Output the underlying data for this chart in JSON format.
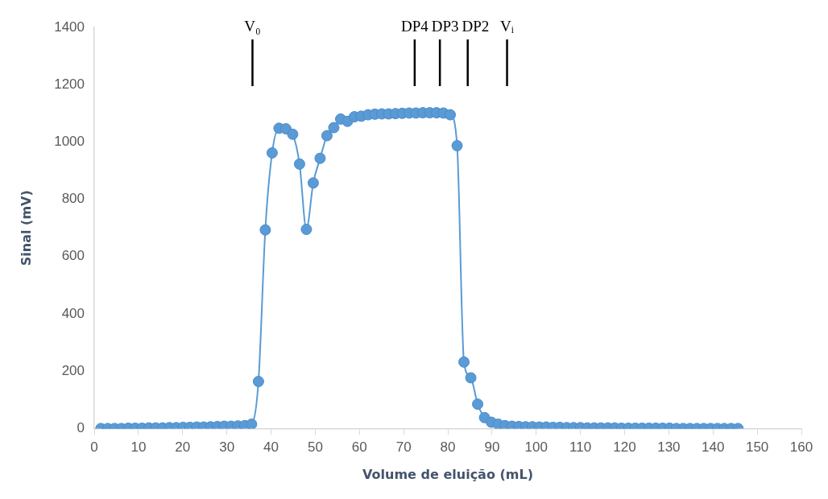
{
  "chart_data": {
    "type": "line",
    "xlabel": "Volume de eluição (mL)",
    "ylabel": "Sinal (mV)",
    "x": [
      1.5,
      3.05,
      4.6,
      6.15,
      7.7,
      9.25,
      10.8,
      12.35,
      13.9,
      15.45,
      17,
      18.55,
      20.1,
      21.65,
      23.2,
      24.75,
      26.3,
      27.85,
      29.4,
      30.95,
      32.5,
      34.05,
      35.6,
      37.15,
      38.7,
      40.25,
      41.8,
      43.35,
      44.9,
      46.45,
      48,
      49.55,
      51.1,
      52.65,
      54.2,
      55.75,
      57.3,
      58.85,
      60.4,
      61.95,
      63.5,
      65.05,
      66.6,
      68.15,
      69.7,
      71.25,
      72.8,
      74.35,
      75.9,
      77.45,
      79,
      80.55,
      82.1,
      83.65,
      85.2,
      86.75,
      88.3,
      89.85,
      91.4,
      92.95,
      94.5,
      96.05,
      97.6,
      99.15,
      100.7,
      102.25,
      103.8,
      105.35,
      106.9,
      108.45,
      110,
      111.55,
      113.1,
      114.65,
      116.2,
      117.75,
      119.3,
      120.85,
      122.4,
      123.95,
      125.5,
      127.05,
      128.6,
      130.15,
      131.7,
      133.25,
      134.8,
      136.35,
      137.9,
      139.45,
      141,
      142.55,
      144.1,
      145.65
    ],
    "series": [
      {
        "color": "#5b9bd5",
        "values": [
          0,
          0,
          0,
          0,
          1,
          1,
          1,
          2,
          2,
          2,
          3,
          3,
          4,
          4,
          5,
          5,
          6,
          7,
          8,
          8,
          9,
          10,
          15,
          164,
          693,
          962,
          1048,
          1046,
          1027,
          923,
          695,
          857,
          943,
          1022,
          1050,
          1080,
          1072,
          1088,
          1090,
          1095,
          1097,
          1098,
          1098,
          1099,
          1100,
          1101,
          1101,
          1102,
          1102,
          1102,
          1101,
          1095,
          987,
          232,
          177,
          85,
          38,
          22,
          15,
          10,
          8,
          7,
          6,
          6,
          5,
          5,
          4,
          4,
          3,
          3,
          3,
          2,
          2,
          2,
          2,
          2,
          1,
          1,
          1,
          1,
          1,
          1,
          1,
          1,
          0,
          0,
          0,
          0,
          0,
          0,
          0,
          0,
          0,
          0
        ]
      }
    ],
    "xlim": [
      0,
      160
    ],
    "xticks": [
      0,
      10,
      20,
      30,
      40,
      50,
      60,
      70,
      80,
      90,
      100,
      110,
      120,
      130,
      140,
      150,
      160
    ],
    "ylim": [
      0,
      1400
    ],
    "yticks": [
      0,
      200,
      400,
      600,
      800,
      1000,
      1200,
      1400
    ],
    "ref_lines": [
      {
        "axis": "x",
        "value": 35.8,
        "label": "V₀"
      },
      {
        "axis": "x",
        "value": 72.5,
        "label": "DP4"
      },
      {
        "axis": "x",
        "value": 78.2,
        "label": "DP3"
      },
      {
        "axis": "x",
        "value": 84.5,
        "label": "DP2"
      },
      {
        "axis": "x",
        "value": 93.4,
        "label": "Vᵢ"
      }
    ],
    "grid": false,
    "legend": false,
    "marker": "circle",
    "line_style": "solid"
  }
}
